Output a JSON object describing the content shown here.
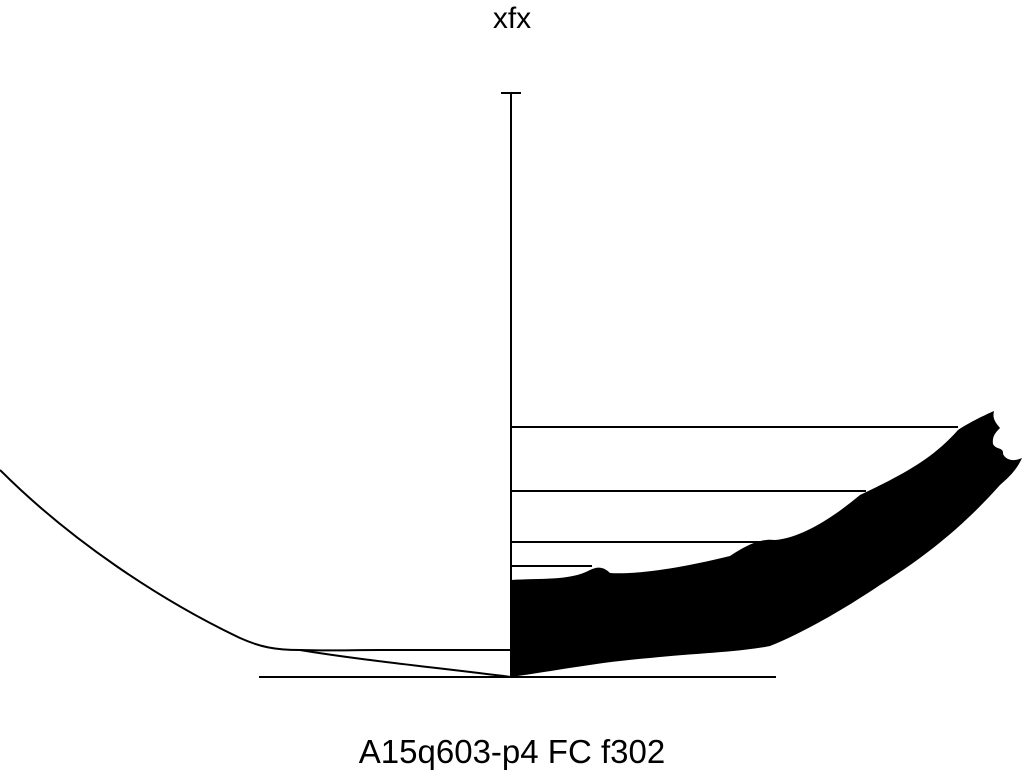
{
  "diagram": {
    "title": "xfx",
    "caption": "A15q603-p4 FC f302",
    "colors": {
      "ink": "#000000",
      "background": "#ffffff"
    }
  }
}
